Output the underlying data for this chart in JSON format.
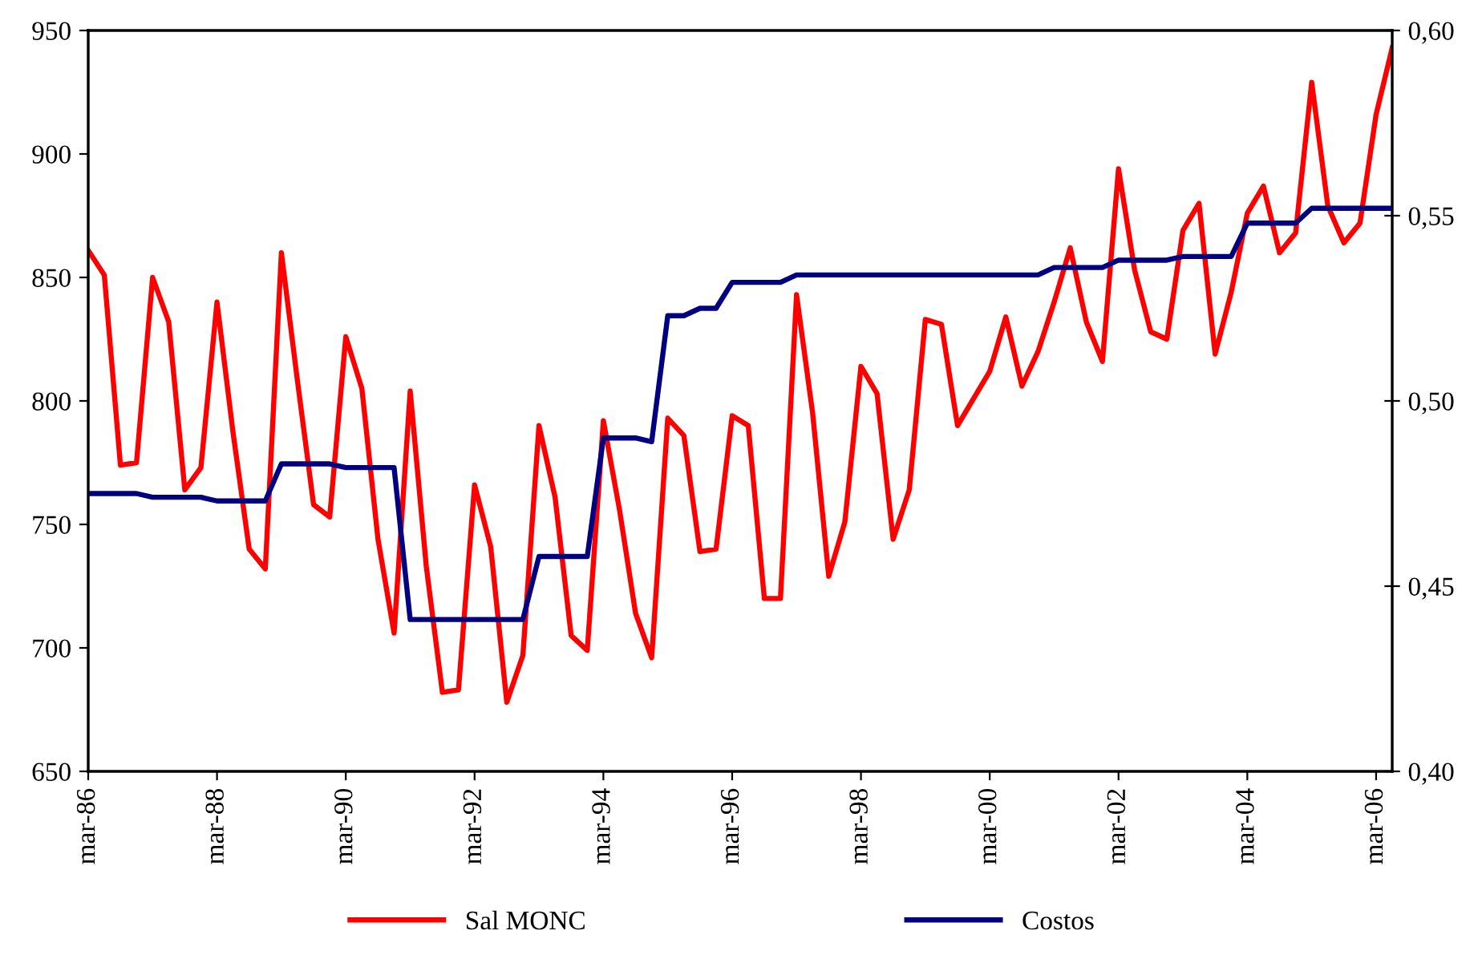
{
  "chart_data": {
    "type": "line",
    "categories": [
      "mar-86",
      null,
      null,
      null,
      null,
      null,
      null,
      null,
      "mar-88",
      null,
      null,
      null,
      null,
      null,
      null,
      null,
      "mar-90",
      null,
      null,
      null,
      null,
      null,
      null,
      null,
      "mar-92",
      null,
      null,
      null,
      null,
      null,
      null,
      null,
      "mar-94",
      null,
      null,
      null,
      null,
      null,
      null,
      null,
      "mar-96",
      null,
      null,
      null,
      null,
      null,
      null,
      null,
      "mar-98",
      null,
      null,
      null,
      null,
      null,
      null,
      null,
      "mar-00",
      null,
      null,
      null,
      null,
      null,
      null,
      null,
      "mar-02",
      null,
      null,
      null,
      null,
      null,
      null,
      null,
      "mar-04",
      null,
      null,
      null,
      null,
      null,
      null,
      null,
      "mar-06",
      null
    ],
    "series": [
      {
        "name": "Sal MONC",
        "color": "#ff0000",
        "values": [
          861,
          851,
          774,
          775,
          850,
          832,
          764,
          773,
          840,
          787,
          740,
          732,
          860,
          808,
          758,
          753,
          826,
          805,
          744,
          706,
          804,
          733,
          682,
          683,
          766,
          741,
          678,
          697,
          790,
          761,
          705,
          699,
          792,
          756,
          714,
          696,
          793,
          786,
          739,
          740,
          794,
          790,
          720,
          720,
          843,
          795,
          729,
          751,
          814,
          803,
          744,
          764,
          833,
          831,
          790,
          801,
          812,
          834,
          806,
          820,
          840,
          862,
          832,
          816,
          894,
          853,
          828,
          825,
          869,
          880,
          819,
          844,
          876,
          887,
          860,
          868,
          929,
          879,
          864,
          872,
          916,
          943
        ]
      },
      {
        "name": "Costos",
        "color": "#000080",
        "axis": "y2",
        "values": [
          0.475,
          0.475,
          0.475,
          0.475,
          0.474,
          0.474,
          0.474,
          0.474,
          0.473,
          0.473,
          0.473,
          0.473,
          0.483,
          0.483,
          0.483,
          0.483,
          0.482,
          0.482,
          0.482,
          0.482,
          0.441,
          0.441,
          0.441,
          0.441,
          0.441,
          0.441,
          0.441,
          0.441,
          0.458,
          0.458,
          0.458,
          0.458,
          0.49,
          0.49,
          0.49,
          0.489,
          0.523,
          0.523,
          0.525,
          0.525,
          0.532,
          0.532,
          0.532,
          0.532,
          0.534,
          0.534,
          0.534,
          0.534,
          0.534,
          0.534,
          0.534,
          0.534,
          0.534,
          0.534,
          0.534,
          0.534,
          0.534,
          0.534,
          0.534,
          0.534,
          0.536,
          0.536,
          0.536,
          0.536,
          0.538,
          0.538,
          0.538,
          0.538,
          0.539,
          0.539,
          0.539,
          0.539,
          0.548,
          0.548,
          0.548,
          0.548,
          0.552,
          0.552,
          0.552,
          0.552,
          0.552,
          0.552
        ]
      }
    ],
    "ylim": [
      650,
      950
    ],
    "yticks": [
      650,
      700,
      750,
      800,
      850,
      900,
      950
    ],
    "y2lim": [
      0.4,
      0.6
    ],
    "y2ticks": [
      {
        "value": 0.4,
        "label": "0,40"
      },
      {
        "value": 0.45,
        "label": "0,45"
      },
      {
        "value": 0.5,
        "label": "0,50"
      },
      {
        "value": 0.55,
        "label": "0,55"
      },
      {
        "value": 0.6,
        "label": "0,60"
      }
    ],
    "legend": "bottom"
  }
}
